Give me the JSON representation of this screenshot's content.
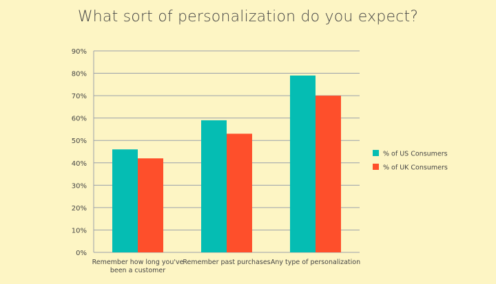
{
  "chart_data": {
    "type": "bar",
    "title": "What sort of personalization do you expect?",
    "categories": [
      [
        "Remember how long you've",
        "been a customer"
      ],
      [
        "Remember past purchases"
      ],
      [
        "Any type of personalization"
      ]
    ],
    "series": [
      {
        "name": "% of US Consumers",
        "values": [
          46,
          59,
          79
        ],
        "color": "#05bdb3"
      },
      {
        "name": "% of UK Consumers",
        "values": [
          42,
          53,
          70
        ],
        "color": "#fe4f2b"
      }
    ],
    "ylim": [
      0,
      90
    ],
    "yticks": [
      "0%",
      "10%",
      "20%",
      "30%",
      "40%",
      "50%",
      "60%",
      "70%",
      "80%",
      "90%"
    ],
    "grid": true,
    "legend_position": "right"
  },
  "colors": {
    "background": "#fdf5c4",
    "grid": "#9aa0aa",
    "axis_text": "#444444"
  }
}
